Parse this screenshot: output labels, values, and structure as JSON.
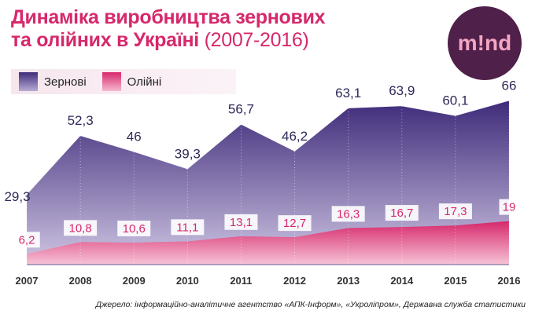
{
  "title_line1": "Динаміка виробництва зернових",
  "title_line2": "та олійних в Україні",
  "title_years": "(2007-2016)",
  "logo_text": "m!nd",
  "source": "Джерело: інформаційно-аналітичне агентство «АПК-Інформ», «Укроліпром», Державна служба статистики",
  "colors": {
    "title": "#d6286b",
    "grain_dark": "#3f2b7a",
    "grain_light": "#cfc6e3",
    "oil_dark": "#d6286b",
    "oil_light": "#f6c3d6",
    "logo_bg": "#4f2049"
  },
  "chart_data": {
    "type": "area",
    "categories": [
      "2007",
      "2008",
      "2009",
      "2010",
      "2011",
      "2012",
      "2013",
      "2014",
      "2015",
      "2016"
    ],
    "series": [
      {
        "name": "Зернові",
        "values": [
          29.3,
          52.3,
          46,
          39.3,
          56.7,
          46.2,
          63.1,
          63.9,
          60.1,
          66
        ],
        "labels": [
          "29,3",
          "52,3",
          "46",
          "39,3",
          "56,7",
          "46,2",
          "63,1",
          "63,9",
          "60,1",
          "66"
        ]
      },
      {
        "name": "Олійні",
        "values": [
          6.2,
          10.8,
          10.6,
          11.1,
          13.1,
          12.7,
          16.3,
          16.7,
          17.3,
          19
        ],
        "labels": [
          "6,2",
          "10,8",
          "10,6",
          "11,1",
          "13,1",
          "12,7",
          "16,3",
          "16,7",
          "17,3",
          "19"
        ]
      }
    ],
    "legend": "top-left",
    "grid": false,
    "xlabel": "",
    "ylabel": ""
  }
}
